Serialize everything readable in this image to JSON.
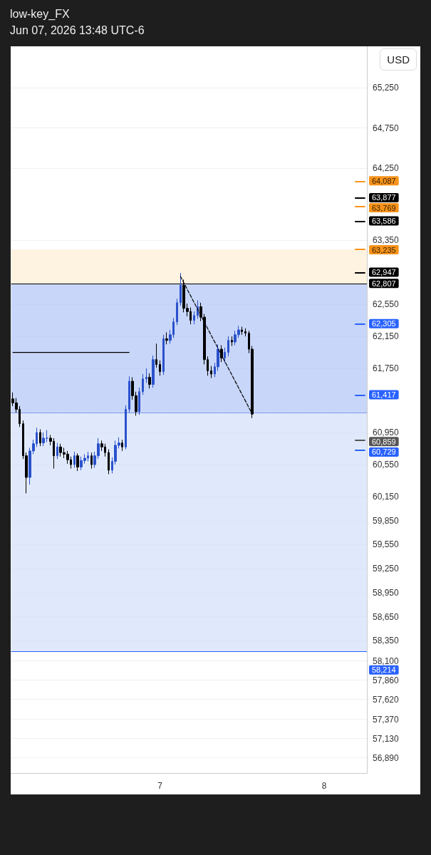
{
  "chart_data": {
    "type": "candlestick",
    "title": "low-key_FX",
    "subtitle": "Jun 07, 2026 13:48 UTC-6",
    "annotations": [
      "USD"
    ],
    "categories": [
      null,
      null,
      null,
      null,
      null,
      null,
      null,
      null,
      null,
      null,
      null,
      null,
      null,
      null,
      null,
      null,
      null,
      null,
      null,
      null,
      null,
      null,
      null,
      null,
      null,
      null,
      null,
      null,
      null,
      null,
      null,
      null,
      null,
      null,
      null,
      null,
      null,
      null,
      null,
      null,
      null,
      null,
      null,
      "7",
      null,
      null,
      null,
      null,
      null,
      null,
      null,
      null,
      null,
      null,
      null,
      null,
      null,
      null,
      null,
      null,
      null,
      null,
      null,
      null,
      null,
      null,
      null,
      null,
      null,
      null,
      null,
      null,
      null,
      null,
      null,
      null,
      null,
      null,
      null,
      null,
      null,
      null,
      null,
      null,
      null,
      null,
      null,
      null,
      null,
      null,
      null,
      "8",
      null,
      null,
      null,
      null,
      null,
      null,
      null,
      null,
      null,
      null,
      null,
      null
    ],
    "ohlc": [
      [
        61370,
        61450,
        61280,
        61320
      ],
      [
        61320,
        61380,
        61200,
        61240
      ],
      [
        61240,
        61280,
        61020,
        61060
      ],
      [
        61060,
        61100,
        60620,
        60660
      ],
      [
        60660,
        60700,
        60190,
        60390
      ],
      [
        60390,
        60760,
        60300,
        60720
      ],
      [
        60720,
        60860,
        60680,
        60810
      ],
      [
        60810,
        61010,
        60770,
        60950
      ],
      [
        60950,
        60990,
        60780,
        60820
      ],
      [
        60820,
        60950,
        60780,
        60880
      ],
      [
        60880,
        60980,
        60830,
        60880
      ],
      [
        60880,
        60920,
        60790,
        60840
      ],
      [
        60840,
        60880,
        60500,
        60660
      ],
      [
        60660,
        60820,
        60620,
        60770
      ],
      [
        60770,
        60810,
        60650,
        60700
      ],
      [
        60700,
        60760,
        60630,
        60680
      ],
      [
        60680,
        60720,
        60560,
        60610
      ],
      [
        60610,
        60650,
        60500,
        60550
      ],
      [
        60550,
        60710,
        60510,
        60660
      ],
      [
        60660,
        60690,
        60470,
        60520
      ],
      [
        60520,
        60650,
        60480,
        60600
      ],
      [
        60600,
        60680,
        60560,
        60630
      ],
      [
        60630,
        60710,
        60590,
        60660
      ],
      [
        60660,
        60700,
        60500,
        60550
      ],
      [
        60550,
        60710,
        60510,
        60660
      ],
      [
        60660,
        60880,
        60620,
        60810
      ],
      [
        60810,
        60850,
        60720,
        60770
      ],
      [
        60770,
        60810,
        60650,
        60700
      ],
      [
        60700,
        60740,
        60430,
        60480
      ],
      [
        60480,
        60640,
        60440,
        60590
      ],
      [
        60590,
        60850,
        60550,
        60790
      ],
      [
        60790,
        60890,
        60750,
        60820
      ],
      [
        60820,
        60860,
        60720,
        60770
      ],
      [
        60770,
        61290,
        60740,
        61240
      ],
      [
        61240,
        61650,
        61200,
        61590
      ],
      [
        61590,
        61640,
        61360,
        61410
      ],
      [
        61410,
        61460,
        61160,
        61210
      ],
      [
        61210,
        61510,
        61170,
        61460
      ],
      [
        61460,
        61680,
        61420,
        61620
      ],
      [
        61620,
        61750,
        61570,
        61640
      ],
      [
        61640,
        61690,
        61500,
        61550
      ],
      [
        61550,
        61910,
        61510,
        61860
      ],
      [
        61860,
        62060,
        61760,
        61800
      ],
      [
        61800,
        61850,
        61660,
        61710
      ],
      [
        61710,
        62170,
        61670,
        62120
      ],
      [
        62120,
        62200,
        62050,
        62100
      ],
      [
        62100,
        62230,
        62060,
        62170
      ],
      [
        62170,
        62380,
        62130,
        62330
      ],
      [
        62330,
        62620,
        62290,
        62570
      ],
      [
        62570,
        62940,
        62530,
        62790
      ],
      [
        62790,
        62860,
        62450,
        62500
      ],
      [
        62500,
        62560,
        62400,
        62460
      ],
      [
        62460,
        62510,
        62300,
        62350
      ],
      [
        62350,
        62460,
        62300,
        62410
      ],
      [
        62410,
        62600,
        62370,
        62520
      ],
      [
        62520,
        62570,
        62340,
        62390
      ],
      [
        62390,
        62430,
        61800,
        61860
      ],
      [
        61860,
        61900,
        61660,
        61720
      ],
      [
        61720,
        61780,
        61630,
        61680
      ],
      [
        61680,
        61820,
        61640,
        61770
      ],
      [
        61770,
        62050,
        61720,
        61990
      ],
      [
        61990,
        62040,
        61830,
        61880
      ],
      [
        61880,
        62010,
        61820,
        61950
      ],
      [
        61950,
        62150,
        61900,
        62100
      ],
      [
        62100,
        62150,
        62030,
        62080
      ],
      [
        62080,
        62220,
        62040,
        62170
      ],
      [
        62170,
        62280,
        62130,
        62230
      ],
      [
        62230,
        62270,
        62170,
        62210
      ],
      [
        62210,
        62250,
        62150,
        62190
      ],
      [
        62190,
        62220,
        61940,
        61990
      ],
      [
        61990,
        62030,
        61130,
        61180
      ],
      null,
      null,
      null,
      null,
      null,
      null,
      null,
      null,
      null,
      null,
      null,
      null,
      null,
      null,
      null,
      null,
      null,
      null,
      null,
      null,
      null,
      null,
      null,
      null,
      null,
      null,
      null,
      null,
      null,
      null,
      null,
      null,
      null
    ],
    "colors": [
      "#000000",
      "#000000",
      "#000000",
      "#000000",
      "#000000",
      "#2a52cc",
      "#2a52cc",
      "#2a52cc",
      "#000000",
      "#2a52cc",
      "#2a52cc",
      "#000000",
      "#000000",
      "#2a52cc",
      "#000000",
      "#000000",
      "#000000",
      "#000000",
      "#2a52cc",
      "#000000",
      "#2a52cc",
      "#2a52cc",
      "#2a52cc",
      "#000000",
      "#2a52cc",
      "#2a52cc",
      "#000000",
      "#000000",
      "#000000",
      "#2a52cc",
      "#2a52cc",
      "#2a52cc",
      "#000000",
      "#2a52cc",
      "#2a52cc",
      "#000000",
      "#000000",
      "#2a52cc",
      "#2a52cc",
      "#2a52cc",
      "#000000",
      "#2a52cc",
      "#000000",
      "#000000",
      "#2a52cc",
      "#000000",
      "#2a52cc",
      "#2a52cc",
      "#2a52cc",
      "#2a52cc",
      "#000000",
      "#000000",
      "#000000",
      "#2a52cc",
      "#2a52cc",
      "#000000",
      "#000000",
      "#000000",
      "#000000",
      "#2a52cc",
      "#2a52cc",
      "#000000",
      "#2a52cc",
      "#2a52cc",
      "#000000",
      "#2a52cc",
      "#2a52cc",
      "#000000",
      "#000000",
      "#000000",
      "#000000",
      null,
      null,
      null,
      null,
      null,
      null,
      null,
      null,
      null,
      null,
      null,
      null,
      null,
      null,
      null,
      null,
      null,
      null,
      null,
      null,
      null,
      null,
      null,
      null,
      null,
      null,
      null,
      null,
      null,
      null,
      null,
      null,
      null
    ],
    "series": [
      {
        "type": "line",
        "color": "#000000",
        "line_style": "dashed",
        "values": [
          null,
          null,
          null,
          null,
          null,
          null,
          null,
          null,
          null,
          null,
          null,
          null,
          null,
          null,
          null,
          null,
          null,
          null,
          null,
          null,
          null,
          null,
          null,
          null,
          null,
          null,
          null,
          null,
          null,
          null,
          null,
          null,
          null,
          null,
          null,
          null,
          null,
          null,
          null,
          null,
          null,
          null,
          null,
          null,
          null,
          null,
          null,
          null,
          null,
          62900,
          null,
          null,
          null,
          null,
          null,
          null,
          null,
          null,
          null,
          null,
          null,
          null,
          null,
          null,
          null,
          null,
          null,
          null,
          null,
          null,
          61180,
          null,
          null,
          null,
          null,
          null,
          null,
          null,
          null,
          null,
          null,
          null,
          null,
          null,
          null,
          null,
          null,
          null,
          null,
          null,
          null,
          null,
          null,
          null,
          null,
          null,
          null,
          null,
          null,
          null,
          null,
          null,
          null,
          null
        ]
      },
      {
        "type": "line",
        "color": "#000000",
        "line_style": "solid",
        "values": [
          61950,
          null,
          null,
          null,
          null,
          null,
          null,
          null,
          null,
          null,
          null,
          null,
          null,
          null,
          null,
          null,
          null,
          null,
          null,
          null,
          null,
          null,
          null,
          null,
          null,
          null,
          null,
          null,
          null,
          null,
          null,
          null,
          null,
          null,
          61950,
          null,
          null,
          null,
          null,
          null,
          null,
          null,
          null,
          null,
          null,
          null,
          null,
          null,
          null,
          null,
          null,
          null,
          null,
          null,
          null,
          null,
          null,
          null,
          null,
          null,
          null,
          null,
          null,
          null,
          null,
          null,
          null,
          null,
          null,
          null,
          null,
          null,
          null,
          null,
          null,
          null,
          null,
          null,
          null,
          null,
          null,
          null,
          null,
          null,
          null,
          null,
          null,
          null,
          null,
          null,
          null,
          null,
          null,
          null,
          null,
          null,
          null,
          null,
          null,
          null,
          null,
          null,
          null,
          null
        ]
      }
    ],
    "marker": "none",
    "ylim": [
      56700,
      65770
    ],
    "yticks": [
      {
        "value": 65250,
        "label": "65,250"
      },
      {
        "value": 64750,
        "label": "64,750"
      },
      {
        "value": 64250,
        "label": "64,250"
      },
      {
        "value": 63350,
        "label": "63,350"
      },
      {
        "value": 62550,
        "label": "62,550"
      },
      {
        "value": 62150,
        "label": "62,150"
      },
      {
        "value": 61750,
        "label": "61,750"
      },
      {
        "value": 60950,
        "label": "60,950"
      },
      {
        "value": 60550,
        "label": "60,550"
      },
      {
        "value": 60150,
        "label": "60,150"
      },
      {
        "value": 59850,
        "label": "59,850"
      },
      {
        "value": 59550,
        "label": "59,550"
      },
      {
        "value": 59250,
        "label": "59,250"
      },
      {
        "value": 58950,
        "label": "58,950"
      },
      {
        "value": 58650,
        "label": "58,650"
      },
      {
        "value": 58350,
        "label": "58,350"
      },
      {
        "value": 58100,
        "label": "58,100"
      },
      {
        "value": 57860,
        "label": "57,860"
      },
      {
        "value": 57620,
        "label": "57,620"
      },
      {
        "value": 57370,
        "label": "57,370"
      },
      {
        "value": 57130,
        "label": "57,130"
      },
      {
        "value": 56890,
        "label": "56,890"
      }
    ],
    "grid": "y",
    "ref_lines": [
      {
        "axis": "y",
        "value": 64087,
        "label": "64,087",
        "color": "#f7931a"
      },
      {
        "axis": "y",
        "value": 63877,
        "label": "63,877",
        "color": "#000000"
      },
      {
        "axis": "y",
        "value": 63769,
        "label": "63,769",
        "color": "#f7931a"
      },
      {
        "axis": "y",
        "value": 63586,
        "label": "63,586",
        "color": "#000000"
      },
      {
        "axis": "y",
        "value": 63235,
        "label": "63,235",
        "color": "#f7931a"
      },
      {
        "axis": "y",
        "value": 62947,
        "label": "62,947",
        "color": "#000000"
      },
      {
        "axis": "y",
        "value": 62807,
        "label": "62,807",
        "color": "#000000",
        "line_style": "solid"
      },
      {
        "axis": "y",
        "value": 62305,
        "label": "62,305",
        "color": "#2962ff"
      },
      {
        "axis": "y",
        "value": 61417,
        "label": "61,417",
        "color": "#2962ff"
      },
      {
        "axis": "y",
        "value": 61195,
        "color": "#2050d8",
        "line_style": "dotted"
      },
      {
        "axis": "y",
        "value": 60859,
        "label": "60,859",
        "color": "#555555"
      },
      {
        "axis": "y",
        "value": 60729,
        "label": "60,729",
        "color": "#2962ff"
      },
      {
        "axis": "y",
        "value": 58214,
        "label": "58,214",
        "color": "#2962ff",
        "line_style": "solid"
      }
    ],
    "bands": [
      {
        "axis": "y",
        "from": 62807,
        "to": 63235,
        "color": "#fdeed6"
      },
      {
        "axis": "y",
        "from": 61195,
        "to": 62807,
        "color": "#b5c8f7"
      },
      {
        "axis": "y",
        "from": 58214,
        "to": 61195,
        "color": "#d6e1fa"
      }
    ]
  }
}
